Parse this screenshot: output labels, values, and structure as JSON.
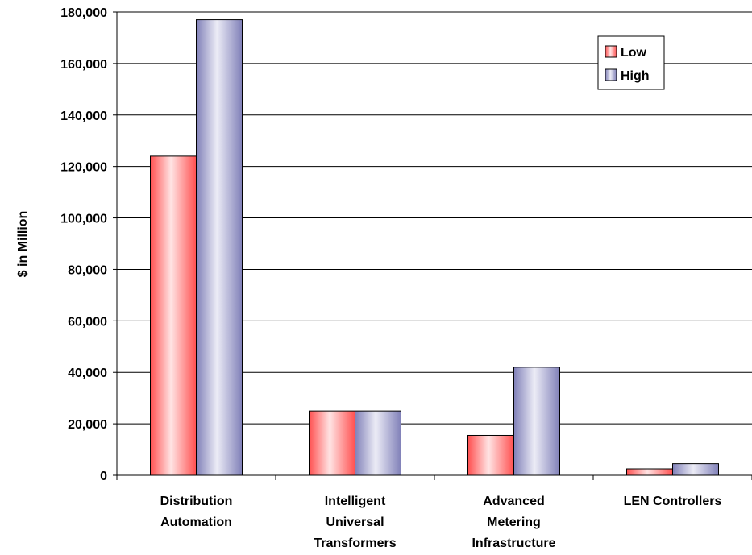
{
  "chart_data": {
    "type": "bar",
    "categories": [
      [
        "Distribution",
        "Automation"
      ],
      [
        "Intelligent",
        "Universal",
        "Transformers"
      ],
      [
        "Advanced",
        "Metering",
        "Infrastructure"
      ],
      [
        "LEN Controllers"
      ]
    ],
    "series": [
      {
        "name": "Low",
        "values": [
          124000,
          25000,
          15500,
          2500
        ],
        "color_light": "#ffe0e0",
        "color_dark": "#ff4040"
      },
      {
        "name": "High",
        "values": [
          177000,
          25000,
          42000,
          4500
        ],
        "color_light": "#e8e8f4",
        "color_dark": "#7070a8"
      }
    ],
    "ylabel": "$ in Million",
    "xlabel": "",
    "title": "",
    "ylim": [
      0,
      180000
    ],
    "yticks": [
      0,
      20000,
      40000,
      60000,
      80000,
      100000,
      120000,
      140000,
      160000,
      180000
    ],
    "ytick_labels": [
      "0",
      "20,000",
      "40,000",
      "60,000",
      "80,000",
      "100,000",
      "120,000",
      "140,000",
      "160,000",
      "180,000"
    ],
    "grid": true,
    "legend_position": "top-right"
  }
}
